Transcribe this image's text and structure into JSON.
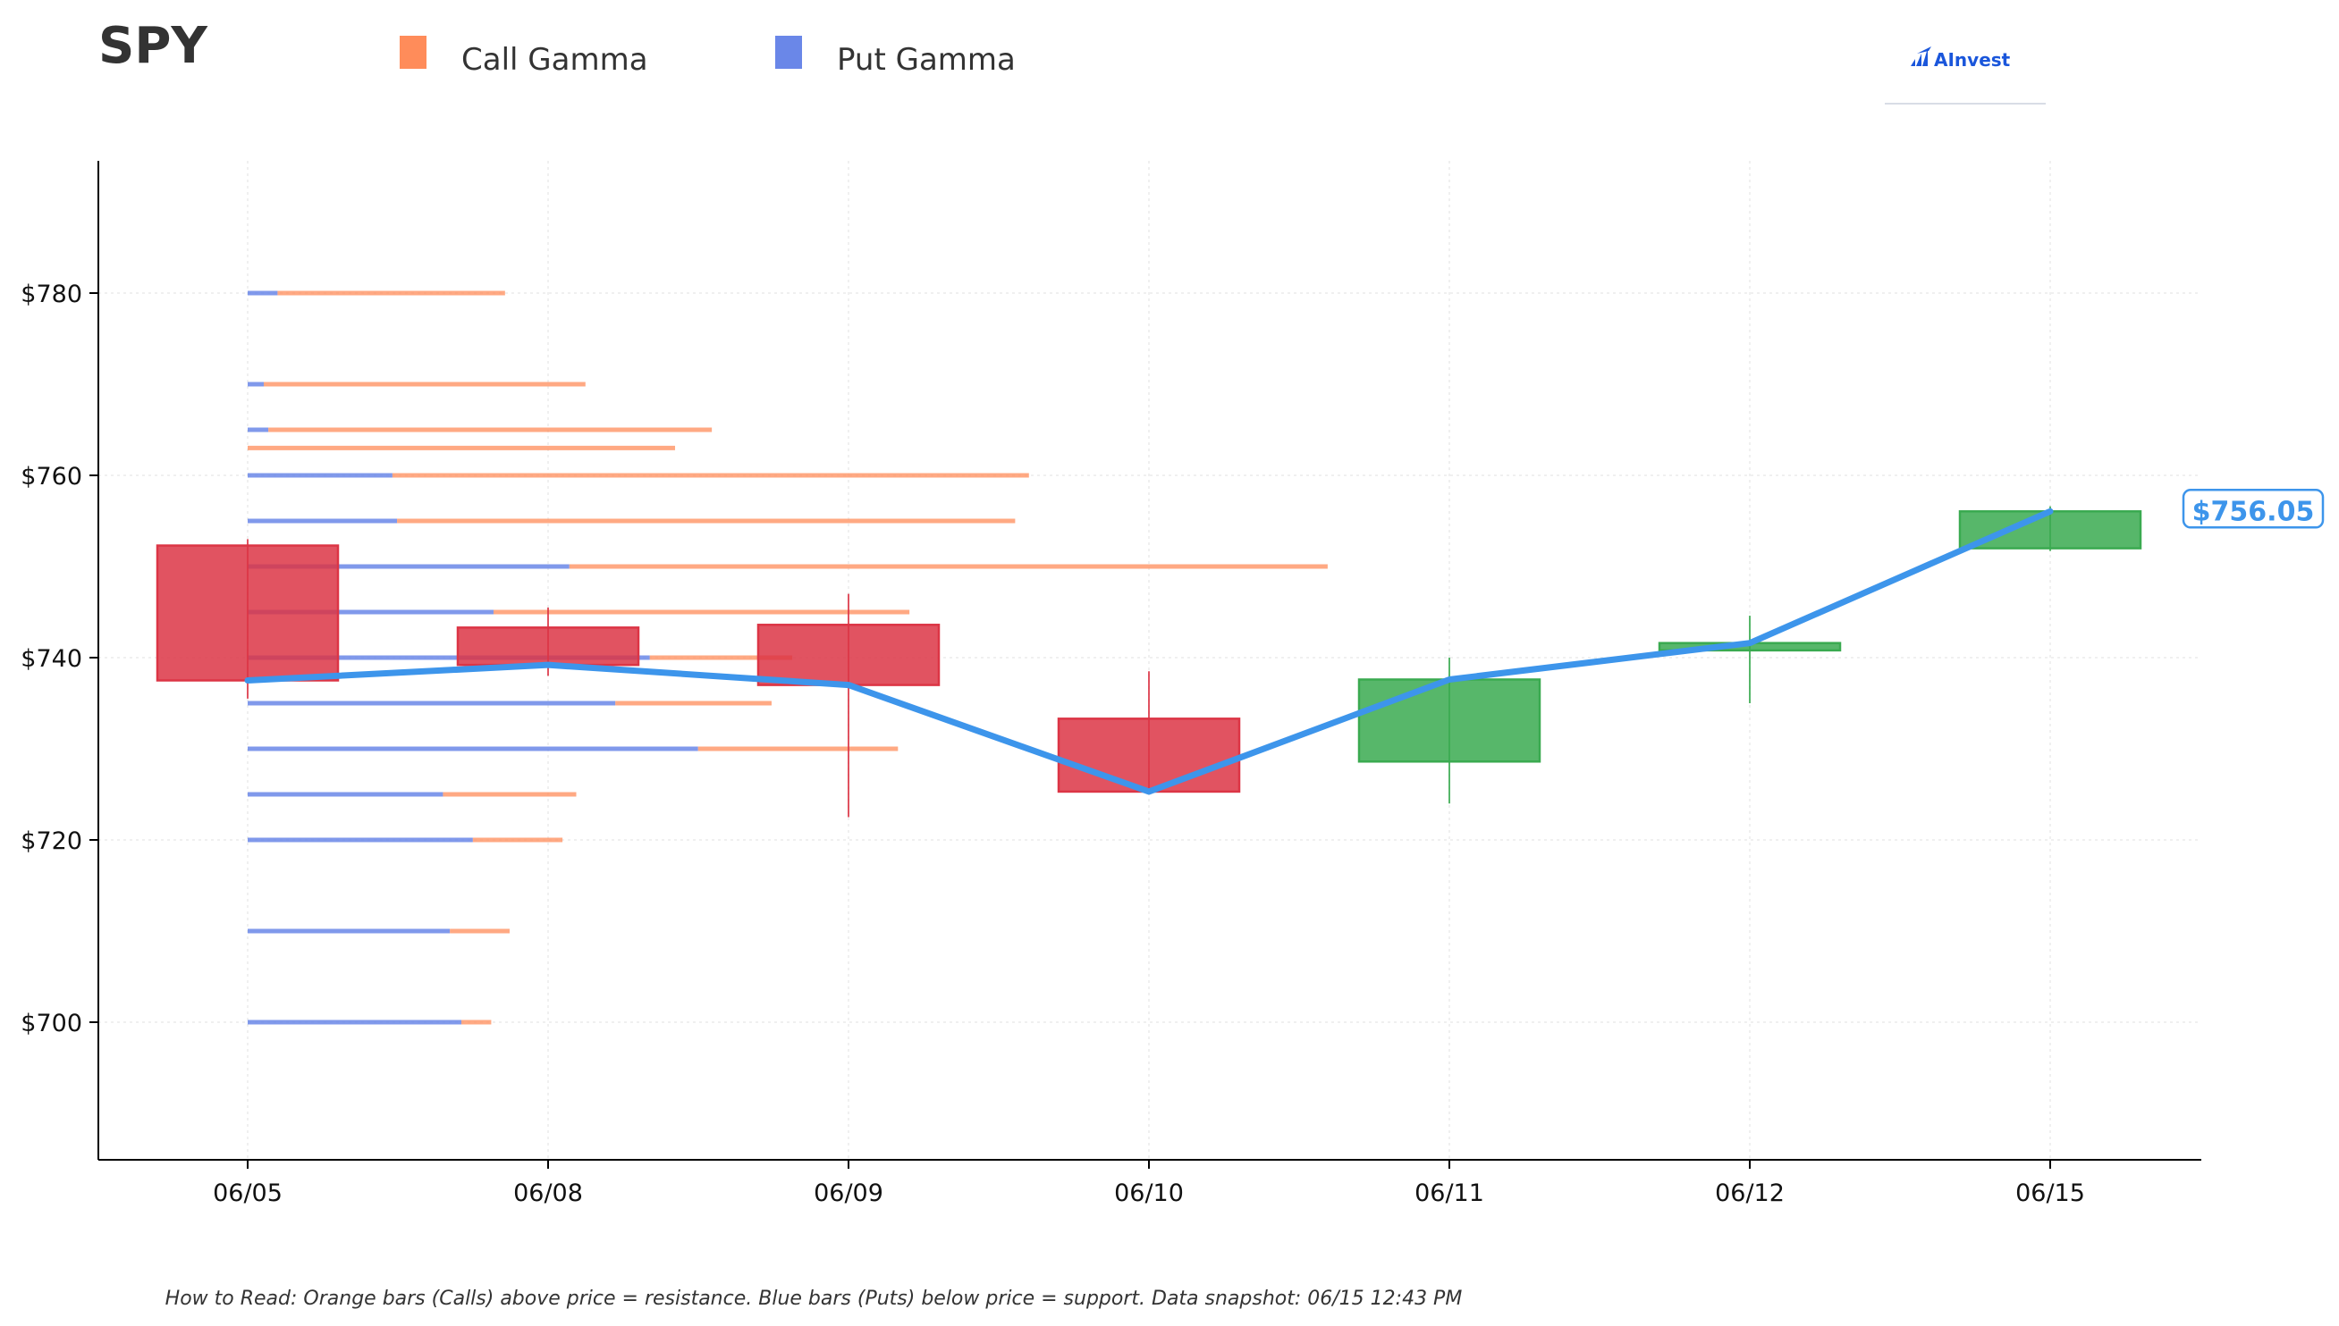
{
  "header": {
    "ticker": "SPY",
    "logo_text": "AInvest"
  },
  "colors": {
    "call": "#FF8C5A",
    "put": "#6A87E8",
    "up": "#3AAA50",
    "down": "#DC3545",
    "price_line": "#3D95EB"
  },
  "legend": [
    {
      "label": "Call Gamma",
      "color": "#FF8C5A"
    },
    {
      "label": "Put Gamma",
      "color": "#6A87E8"
    }
  ],
  "caption": "How to Read: Orange bars (Calls) above price = resistance. Blue bars (Puts) below price = support. Data snapshot: 06/15 12:43 PM",
  "chart_data": {
    "type": "candlestick",
    "title": "SPY",
    "x_categories": [
      "06/05",
      "06/08",
      "06/09",
      "06/10",
      "06/11",
      "06/12",
      "06/15"
    ],
    "ylim": [
      685,
      794
    ],
    "y_ticks": [
      700,
      720,
      740,
      760,
      780
    ],
    "y_tick_labels": [
      "$700",
      "$720",
      "$740",
      "$760",
      "$780"
    ],
    "grid": true,
    "legend_position": "top",
    "candles": [
      {
        "date": "06/05",
        "open": 752.3,
        "close": 737.5,
        "high": 753.0,
        "low": 735.5
      },
      {
        "date": "06/08",
        "open": 743.3,
        "close": 739.2,
        "high": 745.5,
        "low": 738.0
      },
      {
        "date": "06/09",
        "open": 743.6,
        "close": 737.0,
        "high": 747.0,
        "low": 722.5
      },
      {
        "date": "06/10",
        "open": 733.3,
        "close": 725.3,
        "high": 738.5,
        "low": 725.0
      },
      {
        "date": "06/11",
        "open": 728.6,
        "close": 737.6,
        "high": 740.0,
        "low": 724.0
      },
      {
        "date": "06/12",
        "open": 740.8,
        "close": 741.6,
        "high": 744.6,
        "low": 735.0
      },
      {
        "date": "06/15",
        "open": 752.0,
        "close": 756.05,
        "high": 756.6,
        "low": 751.7
      }
    ],
    "price_line": [
      737.5,
      739.2,
      737.0,
      725.3,
      737.6,
      741.6,
      756.05
    ],
    "last_price_label": "$756.05",
    "gamma_levels": [
      {
        "strike": 780,
        "put": 0.13,
        "call": 0.99
      },
      {
        "strike": 770,
        "put": 0.07,
        "call": 1.4
      },
      {
        "strike": 765,
        "put": 0.09,
        "call": 1.93
      },
      {
        "strike": 763,
        "put": 0.0,
        "call": 1.86
      },
      {
        "strike": 760,
        "put": 0.63,
        "call": 2.77
      },
      {
        "strike": 755,
        "put": 0.65,
        "call": 2.69
      },
      {
        "strike": 750,
        "put": 1.4,
        "call": 3.3
      },
      {
        "strike": 745,
        "put": 1.07,
        "call": 1.81
      },
      {
        "strike": 740,
        "put": 1.75,
        "call": 0.62
      },
      {
        "strike": 735,
        "put": 1.6,
        "call": 0.68
      },
      {
        "strike": 730,
        "put": 1.96,
        "call": 0.87
      },
      {
        "strike": 725,
        "put": 0.85,
        "call": 0.58
      },
      {
        "strike": 720,
        "put": 0.98,
        "call": 0.39
      },
      {
        "strike": 710,
        "put": 0.88,
        "call": 0.26
      },
      {
        "strike": 700,
        "put": 0.93,
        "call": 0.13
      }
    ]
  }
}
